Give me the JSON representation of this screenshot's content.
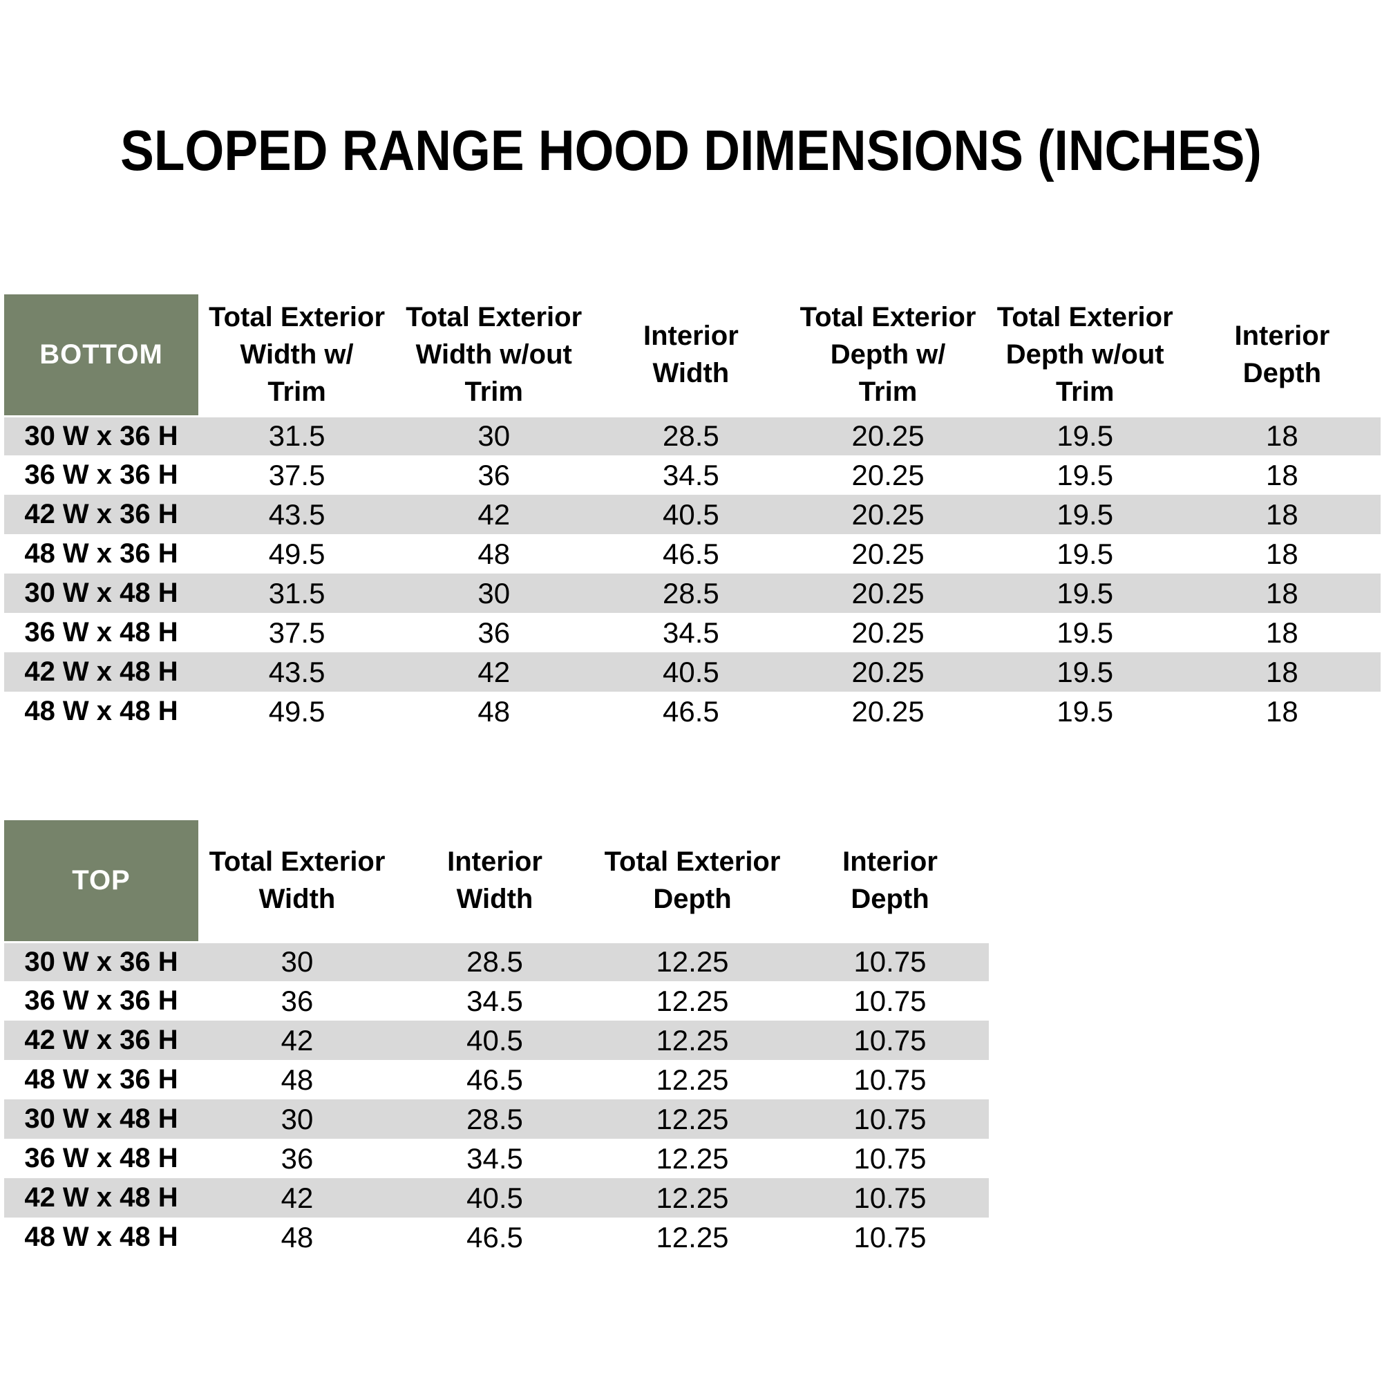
{
  "title": "SLOPED RANGE HOOD DIMENSIONS (INCHES)",
  "colors": {
    "header_green": "#76836A",
    "stripe_gray": "#D9D9D9",
    "text_black": "#000000",
    "corner_text_white": "#FFFFFF"
  },
  "tables": [
    {
      "id": "bottom",
      "corner_label": "BOTTOM",
      "columns": [
        "Total Exterior\nWidth w/\nTrim",
        "Total Exterior\nWidth w/out\nTrim",
        "Interior\nWidth",
        "Total Exterior\nDepth w/\nTrim",
        "Total Exterior\nDepth w/out\nTrim",
        "Interior\nDepth"
      ],
      "rows": [
        {
          "label": "30 W x 36 H",
          "values": [
            "31.5",
            "30",
            "28.5",
            "20.25",
            "19.5",
            "18"
          ]
        },
        {
          "label": "36 W x 36 H",
          "values": [
            "37.5",
            "36",
            "34.5",
            "20.25",
            "19.5",
            "18"
          ]
        },
        {
          "label": "42 W x 36 H",
          "values": [
            "43.5",
            "42",
            "40.5",
            "20.25",
            "19.5",
            "18"
          ]
        },
        {
          "label": "48 W x 36 H",
          "values": [
            "49.5",
            "48",
            "46.5",
            "20.25",
            "19.5",
            "18"
          ]
        },
        {
          "label": "30 W x 48 H",
          "values": [
            "31.5",
            "30",
            "28.5",
            "20.25",
            "19.5",
            "18"
          ]
        },
        {
          "label": "36 W x 48 H",
          "values": [
            "37.5",
            "36",
            "34.5",
            "20.25",
            "19.5",
            "18"
          ]
        },
        {
          "label": "42 W x 48 H",
          "values": [
            "43.5",
            "42",
            "40.5",
            "20.25",
            "19.5",
            "18"
          ]
        },
        {
          "label": "48 W x 48 H",
          "values": [
            "49.5",
            "48",
            "46.5",
            "20.25",
            "19.5",
            "18"
          ]
        }
      ]
    },
    {
      "id": "top",
      "corner_label": "TOP",
      "columns": [
        "Total Exterior\nWidth",
        "Interior\nWidth",
        "Total Exterior\nDepth",
        "Interior\nDepth"
      ],
      "rows": [
        {
          "label": "30 W x 36 H",
          "values": [
            "30",
            "28.5",
            "12.25",
            "10.75"
          ]
        },
        {
          "label": "36 W x 36 H",
          "values": [
            "36",
            "34.5",
            "12.25",
            "10.75"
          ]
        },
        {
          "label": "42 W x 36 H",
          "values": [
            "42",
            "40.5",
            "12.25",
            "10.75"
          ]
        },
        {
          "label": "48 W x 36 H",
          "values": [
            "48",
            "46.5",
            "12.25",
            "10.75"
          ]
        },
        {
          "label": "30 W x 48 H",
          "values": [
            "30",
            "28.5",
            "12.25",
            "10.75"
          ]
        },
        {
          "label": "36 W x 48 H",
          "values": [
            "36",
            "34.5",
            "12.25",
            "10.75"
          ]
        },
        {
          "label": "42 W x 48 H",
          "values": [
            "42",
            "40.5",
            "12.25",
            "10.75"
          ]
        },
        {
          "label": "48 W x 48 H",
          "values": [
            "48",
            "46.5",
            "12.25",
            "10.75"
          ]
        }
      ]
    }
  ]
}
